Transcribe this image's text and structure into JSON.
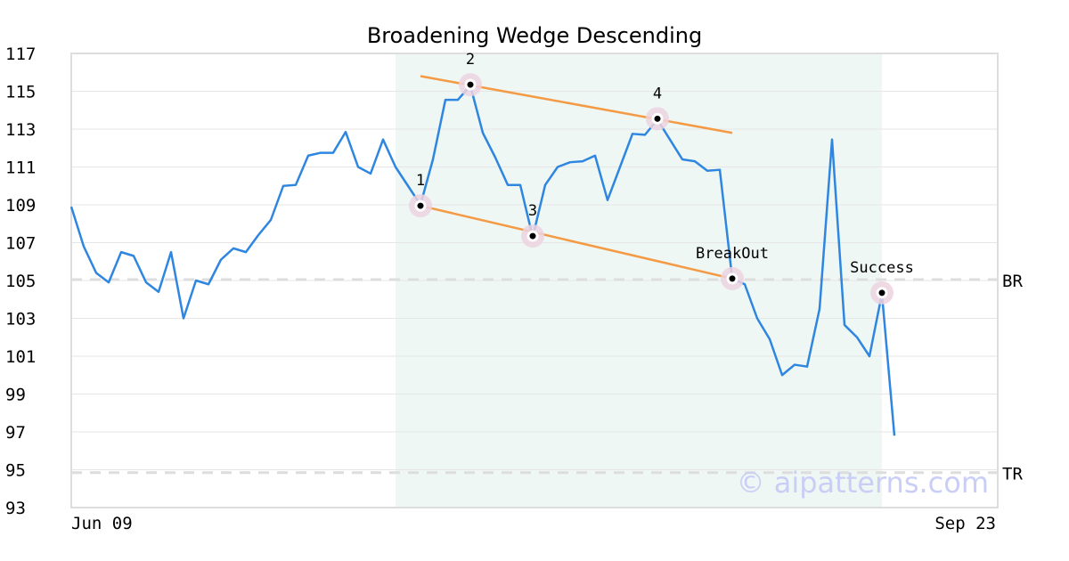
{
  "chart_data": {
    "type": "line",
    "title": "Broadening Wedge Descending",
    "watermark": "© aipatterns.com",
    "ylim": [
      93,
      117
    ],
    "y_ticks": [
      93,
      95,
      97,
      99,
      101,
      103,
      105,
      107,
      109,
      111,
      113,
      115,
      117
    ],
    "x_labels": [
      "Jun 09",
      "Sep 23"
    ],
    "grid": true,
    "colors": {
      "price": "#2f86e0",
      "trendline": "#f59a44",
      "pattern_zone": "#eef7f3",
      "marker_halo": "#ecd3df",
      "level_line": "#dddddd",
      "frame": "#dddddd"
    },
    "price": [
      108.9,
      106.8,
      105.4,
      104.9,
      106.5,
      106.3,
      104.9,
      104.4,
      106.5,
      103.0,
      105.0,
      104.8,
      106.1,
      106.7,
      106.5,
      107.4,
      108.2,
      110.0,
      110.05,
      111.6,
      111.75,
      111.75,
      112.85,
      111.0,
      110.65,
      112.45,
      111.0,
      110.0,
      109.0,
      111.4,
      114.55,
      114.55,
      115.3,
      112.8,
      111.5,
      110.05,
      110.05,
      107.3,
      110.05,
      111.0,
      111.25,
      111.3,
      111.6,
      109.25,
      111.0,
      112.75,
      112.7,
      113.5,
      112.45,
      111.4,
      111.3,
      110.8,
      110.85,
      105.1,
      104.8,
      103.0,
      101.9,
      100.0,
      100.55,
      100.45,
      103.5,
      112.45,
      102.65,
      102.0,
      101.0,
      104.3,
      96.8
    ],
    "pattern_zone": {
      "start_index": 26,
      "end_index": 65
    },
    "trendlines": [
      {
        "x": [
          28,
          53
        ],
        "y": [
          108.95,
          105.1
        ]
      },
      {
        "x": [
          28,
          53
        ],
        "y": [
          115.8,
          112.8
        ]
      }
    ],
    "points": [
      {
        "label": "1",
        "index": 28,
        "y": 108.95
      },
      {
        "label": "2",
        "index": 32,
        "y": 115.35
      },
      {
        "label": "3",
        "index": 37,
        "y": 107.35
      },
      {
        "label": "4",
        "index": 47,
        "y": 113.55
      },
      {
        "label": "BreakOut",
        "index": 53,
        "y": 105.1
      },
      {
        "label": "Success",
        "index": 65,
        "y": 104.35
      }
    ],
    "levels": [
      {
        "label": "BR",
        "y": 105.05
      },
      {
        "label": "TR",
        "y": 94.85
      }
    ]
  }
}
